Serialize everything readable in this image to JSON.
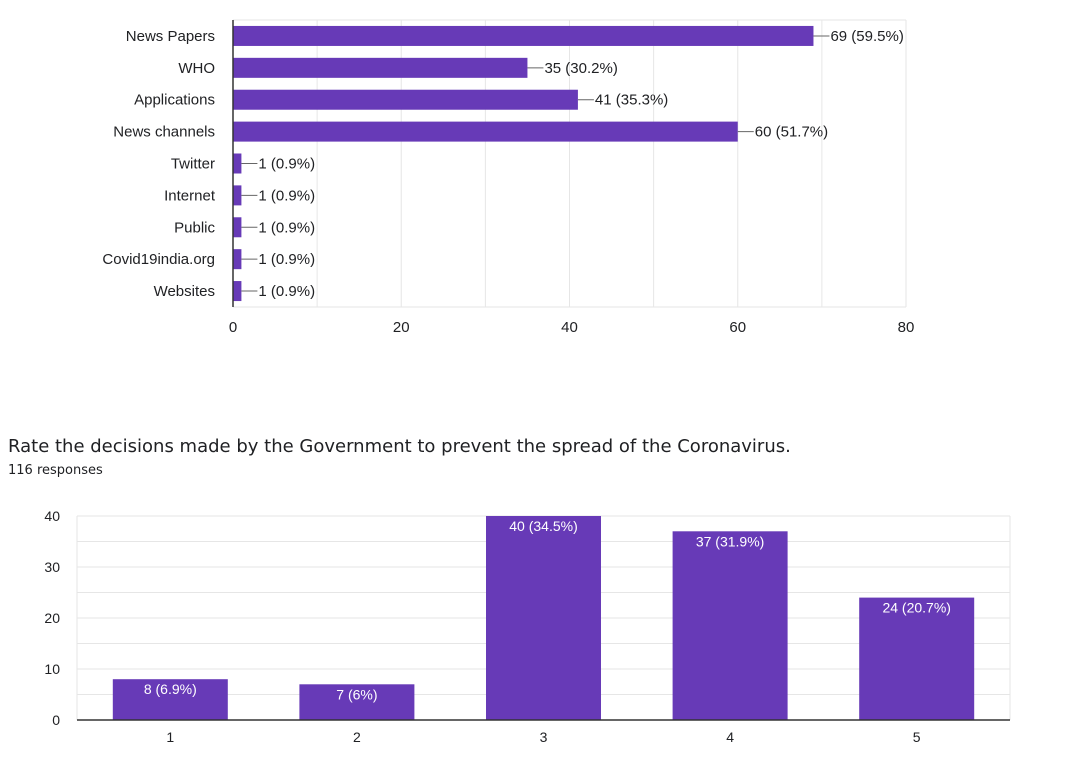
{
  "colors": {
    "bar": "#673ab7",
    "grid": "#e6e6e6",
    "axis": "#333333",
    "text": "#202124",
    "leader": "#666666"
  },
  "chart_data": [
    {
      "type": "bar",
      "orientation": "horizontal",
      "title": "",
      "xlabel": "",
      "ylabel": "",
      "categories": [
        "News Papers",
        "WHO",
        "Applications",
        "News channels",
        "Twitter",
        "Internet",
        "Public",
        "Covid19india.org",
        "Websites"
      ],
      "values": [
        69,
        35,
        41,
        60,
        1,
        1,
        1,
        1,
        1
      ],
      "value_labels": [
        "69 (59.5%)",
        "35 (30.2%)",
        "41 (35.3%)",
        "60 (51.7%)",
        "1 (0.9%)",
        "1 (0.9%)",
        "1 (0.9%)",
        "1 (0.9%)",
        "1 (0.9%)"
      ],
      "xlim": [
        0,
        80
      ],
      "ticks": [
        0,
        20,
        40,
        60,
        80
      ],
      "tick_labels": [
        "0",
        "20",
        "40",
        "60",
        "80"
      ],
      "grid": true,
      "legend": "none"
    },
    {
      "type": "bar",
      "orientation": "vertical",
      "title": "Rate the decisions made by the Government to prevent the spread of the Coronavirus.",
      "subtitle": "116 responses",
      "xlabel": "",
      "ylabel": "",
      "categories": [
        "1",
        "2",
        "3",
        "4",
        "5"
      ],
      "values": [
        8,
        7,
        40,
        37,
        24
      ],
      "value_labels": [
        "8 (6.9%)",
        "7 (6%)",
        "40 (34.5%)",
        "37 (31.9%)",
        "24 (20.7%)"
      ],
      "ylim": [
        0,
        40
      ],
      "ticks": [
        0,
        10,
        20,
        30,
        40
      ],
      "tick_labels": [
        "0",
        "10",
        "20",
        "30",
        "40"
      ],
      "grid": true,
      "legend": "none"
    }
  ]
}
